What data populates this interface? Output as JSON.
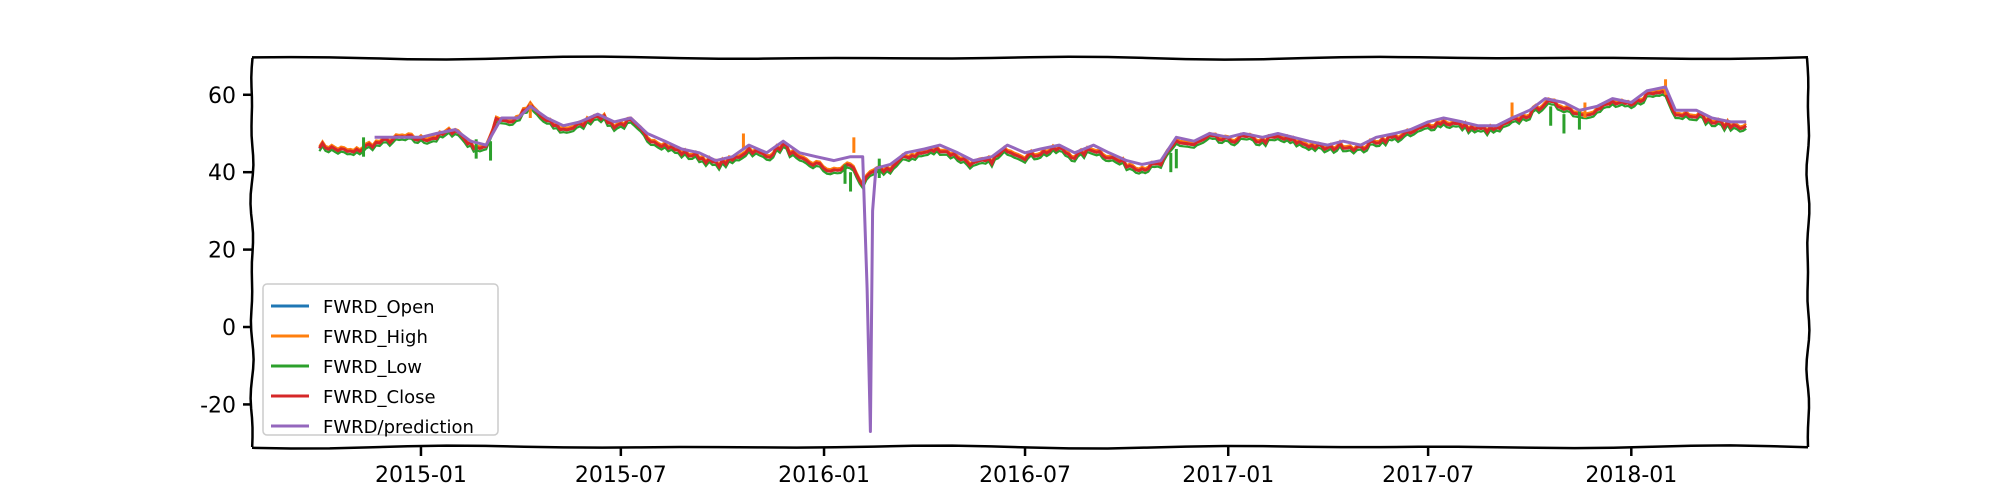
{
  "chart_data": {
    "type": "line",
    "title": "",
    "xlabel": "",
    "ylabel": "",
    "x_ticks": [
      "2015-01",
      "2015-07",
      "2016-01",
      "2016-07",
      "2017-01",
      "2017-07",
      "2018-01"
    ],
    "y_ticks": [
      60,
      40,
      20,
      0,
      -20
    ],
    "xlim": [
      "2014-08-01",
      "2018-06-10"
    ],
    "ylim": [
      -31,
      69.5
    ],
    "grid": false,
    "legend_position": "lower-left",
    "series": [
      {
        "name": "FWRD_Open",
        "color": "#1f77b4"
      },
      {
        "name": "FWRD_High",
        "color": "#ff7f0e"
      },
      {
        "name": "FWRD_Low",
        "color": "#2ca02c"
      },
      {
        "name": "FWRD_Close",
        "color": "#d62728"
      },
      {
        "name": "FWRD/prediction",
        "color": "#9467bd"
      }
    ],
    "close_points": [
      [
        "2014-10-01",
        47
      ],
      [
        "2014-10-15",
        46
      ],
      [
        "2014-11-01",
        45
      ],
      [
        "2014-11-15",
        47
      ],
      [
        "2014-12-01",
        48
      ],
      [
        "2014-12-15",
        49
      ],
      [
        "2015-01-01",
        48.5
      ],
      [
        "2015-01-15",
        49
      ],
      [
        "2015-02-01",
        51
      ],
      [
        "2015-02-15",
        47
      ],
      [
        "2015-03-01",
        46
      ],
      [
        "2015-03-10",
        54
      ],
      [
        "2015-03-25",
        53
      ],
      [
        "2015-04-10",
        57
      ],
      [
        "2015-04-25",
        53
      ],
      [
        "2015-05-10",
        51
      ],
      [
        "2015-05-25",
        52
      ],
      [
        "2015-06-10",
        55
      ],
      [
        "2015-06-25",
        52
      ],
      [
        "2015-07-10",
        53
      ],
      [
        "2015-07-25",
        49
      ],
      [
        "2015-08-10",
        47
      ],
      [
        "2015-08-25",
        45
      ],
      [
        "2015-09-10",
        44
      ],
      [
        "2015-09-25",
        42
      ],
      [
        "2015-10-10",
        43
      ],
      [
        "2015-10-25",
        46
      ],
      [
        "2015-11-10",
        44
      ],
      [
        "2015-11-25",
        47
      ],
      [
        "2015-12-10",
        43
      ],
      [
        "2015-12-25",
        42
      ],
      [
        "2016-01-10",
        40
      ],
      [
        "2016-01-25",
        42
      ],
      [
        "2016-02-05",
        37
      ],
      [
        "2016-02-15",
        40
      ],
      [
        "2016-03-01",
        41
      ],
      [
        "2016-03-15",
        44
      ],
      [
        "2016-04-01",
        45
      ],
      [
        "2016-04-15",
        46
      ],
      [
        "2016-05-01",
        44
      ],
      [
        "2016-05-15",
        42
      ],
      [
        "2016-06-01",
        43
      ],
      [
        "2016-06-15",
        46
      ],
      [
        "2016-07-01",
        44
      ],
      [
        "2016-07-15",
        45
      ],
      [
        "2016-08-01",
        46
      ],
      [
        "2016-08-15",
        44
      ],
      [
        "2016-09-01",
        46
      ],
      [
        "2016-09-15",
        44
      ],
      [
        "2016-10-01",
        42
      ],
      [
        "2016-10-15",
        41
      ],
      [
        "2016-11-01",
        42
      ],
      [
        "2016-11-15",
        48
      ],
      [
        "2016-12-01",
        47
      ],
      [
        "2016-12-15",
        49
      ],
      [
        "2017-01-01",
        48
      ],
      [
        "2017-01-15",
        49
      ],
      [
        "2017-02-01",
        48
      ],
      [
        "2017-02-15",
        49
      ],
      [
        "2017-03-01",
        48
      ],
      [
        "2017-03-15",
        47
      ],
      [
        "2017-04-01",
        46
      ],
      [
        "2017-04-15",
        47
      ],
      [
        "2017-05-01",
        46
      ],
      [
        "2017-05-15",
        48
      ],
      [
        "2017-06-01",
        49
      ],
      [
        "2017-06-15",
        50
      ],
      [
        "2017-07-01",
        52
      ],
      [
        "2017-07-15",
        53
      ],
      [
        "2017-08-01",
        52
      ],
      [
        "2017-08-15",
        51
      ],
      [
        "2017-09-01",
        51
      ],
      [
        "2017-09-15",
        53
      ],
      [
        "2017-10-01",
        55
      ],
      [
        "2017-10-15",
        58
      ],
      [
        "2017-11-01",
        57
      ],
      [
        "2017-11-15",
        55
      ],
      [
        "2017-12-01",
        56
      ],
      [
        "2017-12-15",
        58
      ],
      [
        "2018-01-01",
        57
      ],
      [
        "2018-01-15",
        60
      ],
      [
        "2018-02-01",
        61
      ],
      [
        "2018-02-10",
        55
      ],
      [
        "2018-03-01",
        55
      ],
      [
        "2018-03-15",
        53
      ],
      [
        "2018-04-01",
        52
      ],
      [
        "2018-04-15",
        52
      ]
    ],
    "prediction_points": [
      [
        "2014-11-20",
        49
      ],
      [
        "2014-12-15",
        49
      ],
      [
        "2015-01-01",
        49
      ],
      [
        "2015-01-15",
        50
      ],
      [
        "2015-02-01",
        51
      ],
      [
        "2015-02-15",
        48
      ],
      [
        "2015-03-01",
        47
      ],
      [
        "2015-03-15",
        54
      ],
      [
        "2015-03-30",
        54
      ],
      [
        "2015-04-10",
        57
      ],
      [
        "2015-04-25",
        54
      ],
      [
        "2015-05-10",
        52
      ],
      [
        "2015-05-25",
        53
      ],
      [
        "2015-06-10",
        55
      ],
      [
        "2015-06-25",
        53
      ],
      [
        "2015-07-10",
        54
      ],
      [
        "2015-07-25",
        50
      ],
      [
        "2015-08-10",
        48
      ],
      [
        "2015-08-25",
        46
      ],
      [
        "2015-09-10",
        45
      ],
      [
        "2015-09-25",
        43
      ],
      [
        "2015-10-10",
        44
      ],
      [
        "2015-10-25",
        47
      ],
      [
        "2015-11-10",
        45
      ],
      [
        "2015-11-25",
        48
      ],
      [
        "2015-12-10",
        45
      ],
      [
        "2015-12-25",
        44
      ],
      [
        "2016-01-10",
        43
      ],
      [
        "2016-01-25",
        44
      ],
      [
        "2016-02-05",
        44
      ],
      [
        "2016-02-09",
        10
      ],
      [
        "2016-02-12",
        -27
      ],
      [
        "2016-02-14",
        30
      ],
      [
        "2016-02-17",
        41
      ],
      [
        "2016-03-01",
        42
      ],
      [
        "2016-03-15",
        45
      ],
      [
        "2016-04-01",
        46
      ],
      [
        "2016-04-15",
        47
      ],
      [
        "2016-05-01",
        45
      ],
      [
        "2016-05-15",
        43
      ],
      [
        "2016-06-01",
        44
      ],
      [
        "2016-06-15",
        47
      ],
      [
        "2016-07-01",
        45
      ],
      [
        "2016-07-15",
        46
      ],
      [
        "2016-08-01",
        47
      ],
      [
        "2016-08-15",
        45
      ],
      [
        "2016-09-01",
        47
      ],
      [
        "2016-09-15",
        45
      ],
      [
        "2016-10-01",
        43
      ],
      [
        "2016-10-15",
        42
      ],
      [
        "2016-11-01",
        43
      ],
      [
        "2016-11-15",
        49
      ],
      [
        "2016-12-01",
        48
      ],
      [
        "2016-12-15",
        50
      ],
      [
        "2017-01-01",
        49
      ],
      [
        "2017-01-15",
        50
      ],
      [
        "2017-02-01",
        49
      ],
      [
        "2017-02-15",
        50
      ],
      [
        "2017-03-01",
        49
      ],
      [
        "2017-03-15",
        48
      ],
      [
        "2017-04-01",
        47
      ],
      [
        "2017-04-15",
        48
      ],
      [
        "2017-05-01",
        47
      ],
      [
        "2017-05-15",
        49
      ],
      [
        "2017-06-01",
        50
      ],
      [
        "2017-06-15",
        51
      ],
      [
        "2017-07-01",
        53
      ],
      [
        "2017-07-15",
        54
      ],
      [
        "2017-08-01",
        53
      ],
      [
        "2017-08-15",
        52
      ],
      [
        "2017-09-01",
        52
      ],
      [
        "2017-09-15",
        54
      ],
      [
        "2017-10-01",
        56
      ],
      [
        "2017-10-15",
        59
      ],
      [
        "2017-11-01",
        58
      ],
      [
        "2017-11-15",
        56
      ],
      [
        "2017-12-01",
        57
      ],
      [
        "2017-12-15",
        59
      ],
      [
        "2018-01-01",
        58
      ],
      [
        "2018-01-15",
        61
      ],
      [
        "2018-02-01",
        62
      ],
      [
        "2018-02-10",
        56
      ],
      [
        "2018-03-01",
        56
      ],
      [
        "2018-03-15",
        54
      ],
      [
        "2018-04-01",
        53
      ],
      [
        "2018-04-15",
        53
      ]
    ],
    "high_spikes": [
      [
        "2015-04-10",
        58
      ],
      [
        "2015-10-20",
        50
      ],
      [
        "2016-01-28",
        49
      ],
      [
        "2017-09-15",
        58
      ],
      [
        "2017-11-20",
        58
      ],
      [
        "2018-02-01",
        64
      ]
    ],
    "low_spikes": [
      [
        "2014-11-10",
        44
      ],
      [
        "2015-02-20",
        43.5
      ],
      [
        "2015-03-05",
        43
      ],
      [
        "2016-01-20",
        37
      ],
      [
        "2016-01-25",
        35
      ],
      [
        "2016-02-20",
        38.5
      ],
      [
        "2016-11-10",
        40
      ],
      [
        "2016-11-15",
        41
      ],
      [
        "2017-10-20",
        52
      ],
      [
        "2017-11-01",
        50
      ],
      [
        "2017-11-15",
        51
      ]
    ]
  }
}
